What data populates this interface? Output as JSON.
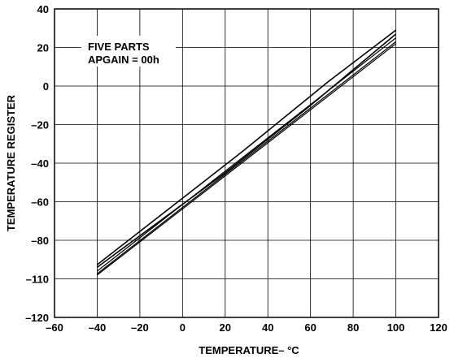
{
  "chart_data": {
    "type": "line",
    "title": "",
    "xlabel": "TEMPERATURE– °C",
    "ylabel": "TEMPERATURE REGISTER",
    "xlim": [
      -60,
      120
    ],
    "ylim": [
      -120,
      40
    ],
    "x_ticks": [
      -60,
      -40,
      -20,
      0,
      20,
      40,
      60,
      80,
      100,
      120
    ],
    "y_ticks": [
      -120,
      -110,
      -80,
      -60,
      -40,
      -20,
      0,
      20,
      40
    ],
    "x_tick_labels": [
      "–60",
      "–40",
      "–20",
      "0",
      "20",
      "40",
      "60",
      "80",
      "100",
      "120"
    ],
    "y_tick_labels": [
      "–120",
      "–110",
      "–80",
      "–60",
      "–40",
      "–20",
      "0",
      "20",
      "40"
    ],
    "grid": true,
    "annotations": [
      "FIVE PARTS",
      "APGAIN = 00h"
    ],
    "series": [
      {
        "x": [
          -40,
          28,
          68,
          100
        ],
        "values": [
          -99,
          -34,
          2,
          29
        ]
      },
      {
        "x": [
          -40,
          20,
          60,
          100
        ],
        "values": [
          -101,
          -45,
          -10,
          27
        ]
      },
      {
        "x": [
          -40,
          100
        ],
        "values": [
          -104,
          25
        ]
      },
      {
        "x": [
          -40,
          100
        ],
        "values": [
          -106,
          23
        ]
      },
      {
        "x": [
          -40,
          100
        ],
        "values": [
          -107,
          22
        ]
      }
    ]
  }
}
